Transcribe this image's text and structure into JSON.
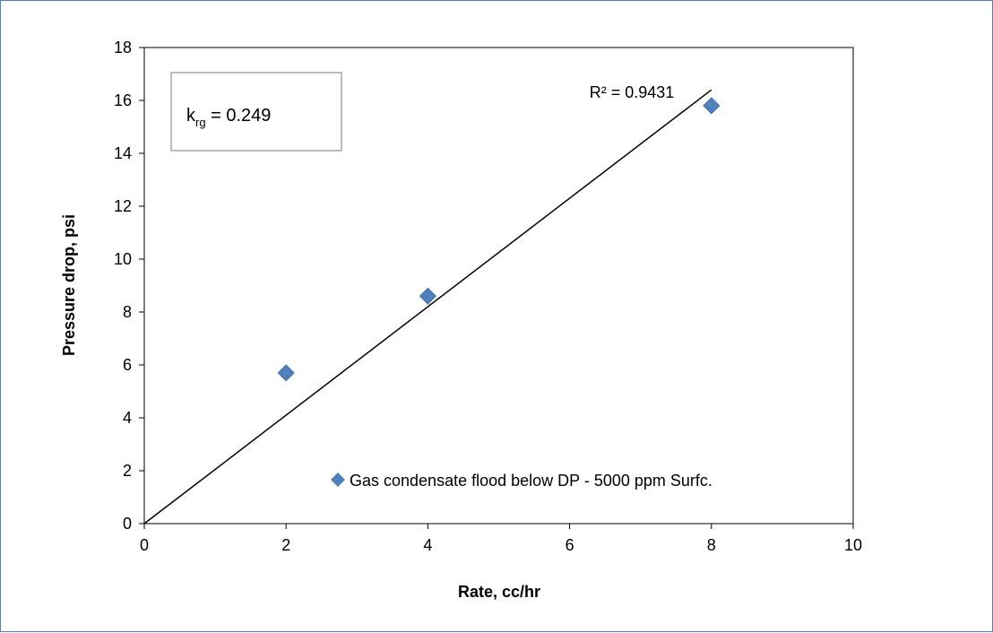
{
  "chart_data": {
    "type": "scatter",
    "xlabel": "Rate, cc/hr",
    "ylabel": "Pressure drop, psi",
    "xlim": [
      0,
      10
    ],
    "ylim": [
      0,
      18
    ],
    "x_ticks": [
      "0",
      "2",
      "4",
      "6",
      "8",
      "10"
    ],
    "y_ticks": [
      "0",
      "2",
      "4",
      "6",
      "8",
      "10",
      "12",
      "14",
      "16",
      "18"
    ],
    "grid": false,
    "legend_position": "bottom-right",
    "series": [
      {
        "name": "Gas condensate flood below DP - 5000 ppm Surfc.",
        "color": "#4f81bd",
        "marker": "diamond",
        "x": [
          2,
          4,
          8
        ],
        "y": [
          5.7,
          8.6,
          15.8
        ]
      }
    ],
    "trendline": {
      "type": "linear",
      "color": "#000000",
      "x": [
        0,
        8
      ],
      "y": [
        0,
        16.4
      ],
      "r2_label": "R² = 0.9431"
    },
    "annotation_box": {
      "base": "k",
      "subscript": "rg",
      "value_text": " = 0.249"
    }
  }
}
